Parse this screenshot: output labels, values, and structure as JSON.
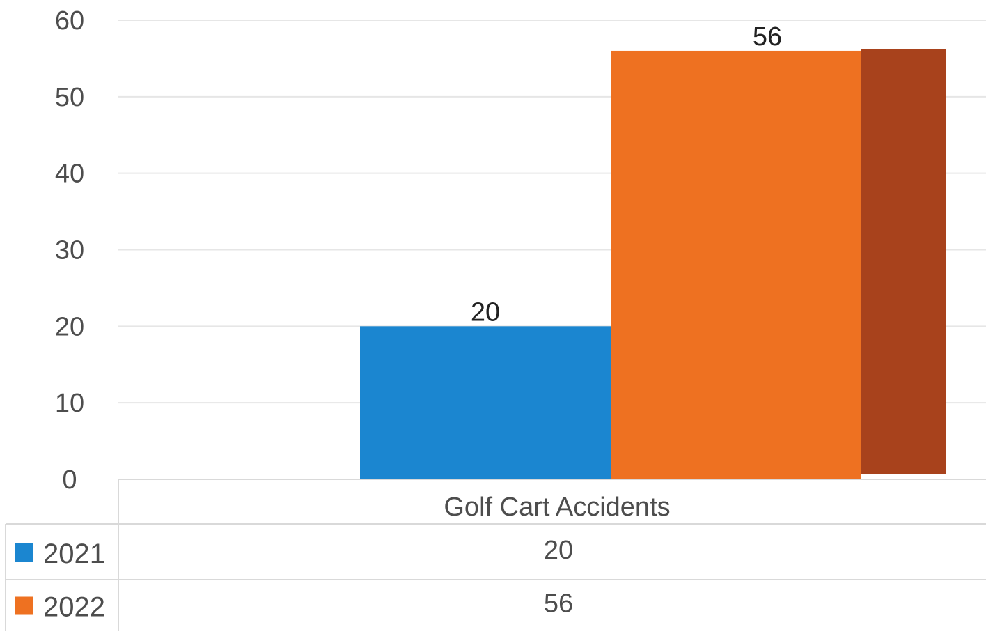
{
  "chart_data": {
    "type": "bar",
    "categories": [
      "Golf Cart Accidents"
    ],
    "series": [
      {
        "name": "2021",
        "values": [
          20
        ],
        "color": "#1b86d0"
      },
      {
        "name": "2022",
        "values": [
          56
        ],
        "color": "#ee7121",
        "shade_color": "#a8421c"
      }
    ],
    "title": "",
    "xlabel": "",
    "ylabel": "",
    "ylim": [
      0,
      60
    ],
    "yticks": [
      "0",
      "10",
      "20",
      "30",
      "40",
      "50",
      "60"
    ],
    "data_labels": [
      "20",
      "56"
    ],
    "grid": true,
    "legend": "data-table-below",
    "data_table": {
      "rows": [
        {
          "label": "2021",
          "values": [
            "20"
          ]
        },
        {
          "label": "2022",
          "values": [
            "56"
          ]
        }
      ]
    }
  }
}
